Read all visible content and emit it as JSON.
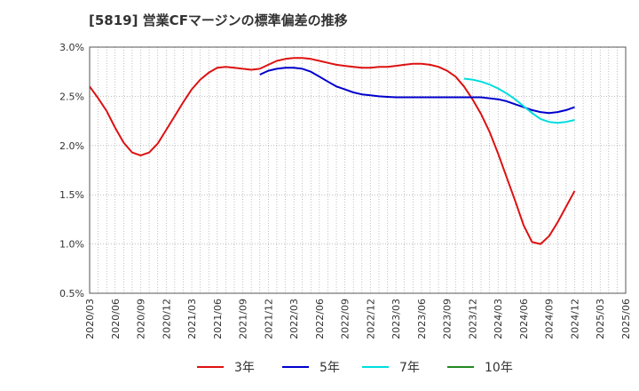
{
  "chart_data": {
    "type": "line",
    "title": "[5819]  営業CFマージンの標準偏差の推移",
    "x_ticks": [
      "2020/03",
      "2020/06",
      "2020/09",
      "2020/12",
      "2021/03",
      "2021/06",
      "2021/09",
      "2021/12",
      "2022/03",
      "2022/06",
      "2022/09",
      "2022/12",
      "2023/03",
      "2023/06",
      "2023/09",
      "2023/12",
      "2024/03",
      "2024/06",
      "2024/09",
      "2024/12",
      "2025/03",
      "2025/06"
    ],
    "y_ticks": [
      "0.5%",
      "1.0%",
      "1.5%",
      "2.0%",
      "2.5%",
      "3.0%"
    ],
    "ylim": [
      0.5,
      3.0
    ],
    "grid": true,
    "legend_position": "bottom",
    "series": [
      {
        "name": "3年",
        "color": "#dd1111",
        "points": [
          [
            "2020/03",
            2.6
          ],
          [
            "2020/04",
            2.48
          ],
          [
            "2020/05",
            2.35
          ],
          [
            "2020/06",
            2.18
          ],
          [
            "2020/07",
            2.03
          ],
          [
            "2020/08",
            1.93
          ],
          [
            "2020/09",
            1.9
          ],
          [
            "2020/10",
            1.93
          ],
          [
            "2020/11",
            2.02
          ],
          [
            "2020/12",
            2.16
          ],
          [
            "2021/01",
            2.3
          ],
          [
            "2021/02",
            2.44
          ],
          [
            "2021/03",
            2.57
          ],
          [
            "2021/04",
            2.67
          ],
          [
            "2021/05",
            2.74
          ],
          [
            "2021/06",
            2.79
          ],
          [
            "2021/07",
            2.8
          ],
          [
            "2021/08",
            2.79
          ],
          [
            "2021/09",
            2.78
          ],
          [
            "2021/10",
            2.77
          ],
          [
            "2021/11",
            2.78
          ],
          [
            "2021/12",
            2.82
          ],
          [
            "2022/01",
            2.86
          ],
          [
            "2022/02",
            2.88
          ],
          [
            "2022/03",
            2.89
          ],
          [
            "2022/04",
            2.89
          ],
          [
            "2022/05",
            2.88
          ],
          [
            "2022/06",
            2.86
          ],
          [
            "2022/07",
            2.84
          ],
          [
            "2022/08",
            2.82
          ],
          [
            "2022/09",
            2.81
          ],
          [
            "2022/10",
            2.8
          ],
          [
            "2022/11",
            2.79
          ],
          [
            "2022/12",
            2.79
          ],
          [
            "2023/01",
            2.8
          ],
          [
            "2023/02",
            2.8
          ],
          [
            "2023/03",
            2.81
          ],
          [
            "2023/04",
            2.82
          ],
          [
            "2023/05",
            2.83
          ],
          [
            "2023/06",
            2.83
          ],
          [
            "2023/07",
            2.82
          ],
          [
            "2023/08",
            2.8
          ],
          [
            "2023/09",
            2.76
          ],
          [
            "2023/10",
            2.7
          ],
          [
            "2023/11",
            2.6
          ],
          [
            "2023/12",
            2.47
          ],
          [
            "2024/01",
            2.32
          ],
          [
            "2024/02",
            2.14
          ],
          [
            "2024/03",
            1.92
          ],
          [
            "2024/04",
            1.68
          ],
          [
            "2024/05",
            1.44
          ],
          [
            "2024/06",
            1.19
          ],
          [
            "2024/07",
            1.02
          ],
          [
            "2024/08",
            1.0
          ],
          [
            "2024/09",
            1.08
          ],
          [
            "2024/10",
            1.22
          ],
          [
            "2024/11",
            1.38
          ],
          [
            "2024/12",
            1.54
          ]
        ]
      },
      {
        "name": "5年",
        "color": "#0000cc",
        "points": [
          [
            "2021/11",
            2.72
          ],
          [
            "2021/12",
            2.76
          ],
          [
            "2022/01",
            2.78
          ],
          [
            "2022/02",
            2.79
          ],
          [
            "2022/03",
            2.79
          ],
          [
            "2022/04",
            2.78
          ],
          [
            "2022/05",
            2.75
          ],
          [
            "2022/06",
            2.7
          ],
          [
            "2022/07",
            2.65
          ],
          [
            "2022/08",
            2.6
          ],
          [
            "2022/09",
            2.57
          ],
          [
            "2022/10",
            2.54
          ],
          [
            "2022/11",
            2.52
          ],
          [
            "2022/12",
            2.51
          ],
          [
            "2023/01",
            2.5
          ],
          [
            "2023/02",
            2.495
          ],
          [
            "2023/03",
            2.49
          ],
          [
            "2023/04",
            2.49
          ],
          [
            "2023/05",
            2.49
          ],
          [
            "2023/06",
            2.49
          ],
          [
            "2023/07",
            2.49
          ],
          [
            "2023/08",
            2.49
          ],
          [
            "2023/09",
            2.49
          ],
          [
            "2023/10",
            2.49
          ],
          [
            "2023/11",
            2.49
          ],
          [
            "2023/12",
            2.49
          ],
          [
            "2024/01",
            2.49
          ],
          [
            "2024/02",
            2.48
          ],
          [
            "2024/03",
            2.47
          ],
          [
            "2024/04",
            2.45
          ],
          [
            "2024/05",
            2.42
          ],
          [
            "2024/06",
            2.39
          ],
          [
            "2024/07",
            2.36
          ],
          [
            "2024/08",
            2.34
          ],
          [
            "2024/09",
            2.33
          ],
          [
            "2024/10",
            2.34
          ],
          [
            "2024/11",
            2.36
          ],
          [
            "2024/12",
            2.39
          ]
        ]
      },
      {
        "name": "7年",
        "color": "#00dddd",
        "points": [
          [
            "2023/11",
            2.68
          ],
          [
            "2023/12",
            2.67
          ],
          [
            "2024/01",
            2.65
          ],
          [
            "2024/02",
            2.62
          ],
          [
            "2024/03",
            2.58
          ],
          [
            "2024/04",
            2.53
          ],
          [
            "2024/05",
            2.47
          ],
          [
            "2024/06",
            2.4
          ],
          [
            "2024/07",
            2.33
          ],
          [
            "2024/08",
            2.27
          ],
          [
            "2024/09",
            2.24
          ],
          [
            "2024/10",
            2.23
          ],
          [
            "2024/11",
            2.24
          ],
          [
            "2024/12",
            2.26
          ]
        ]
      },
      {
        "name": "10年",
        "color": "#228822",
        "points": []
      }
    ]
  }
}
